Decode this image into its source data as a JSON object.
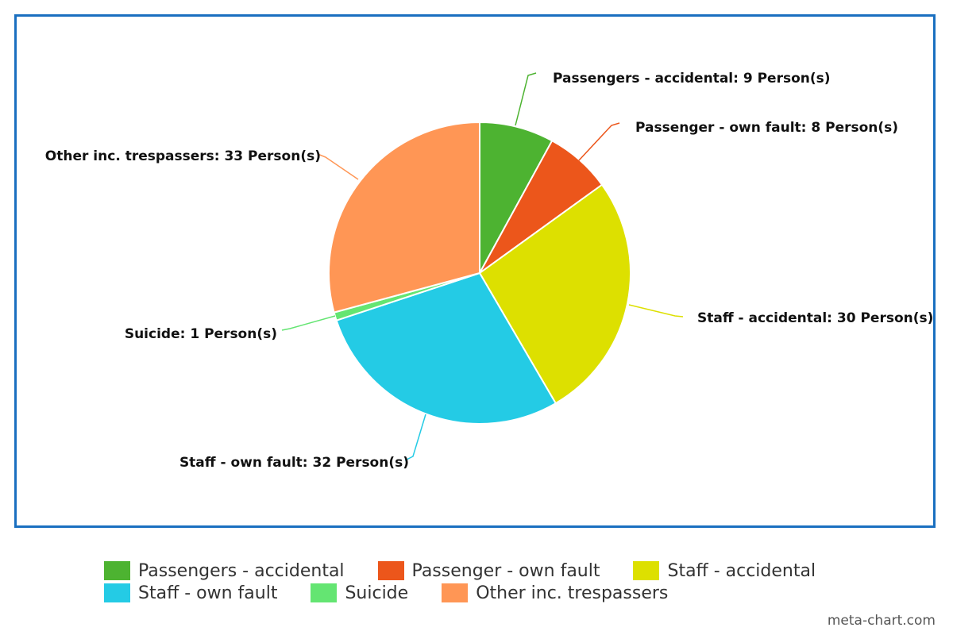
{
  "chart_data": {
    "type": "pie",
    "title": "",
    "unit": "Person(s)",
    "slices": [
      {
        "name": "Passengers - accidental",
        "value": 9,
        "label": "Passengers - accidental: 9 Person(s)",
        "color": "#4db331"
      },
      {
        "name": "Passenger - own fault",
        "value": 8,
        "label": "Passenger - own fault: 8 Person(s)",
        "color": "#ec561b"
      },
      {
        "name": "Staff - accidental",
        "value": 30,
        "label": "Staff - accidental: 30 Person(s)",
        "color": "#dde000"
      },
      {
        "name": "Staff - own fault",
        "value": 32,
        "label": "Staff - own fault: 32 Person(s)",
        "color": "#24cbe5"
      },
      {
        "name": "Suicide",
        "value": 1,
        "label": "Suicide: 1 Person(s)",
        "color": "#64e572"
      },
      {
        "name": "Other inc. trespassers",
        "value": 33,
        "label": "Other inc. trespassers: 33 Person(s)",
        "color": "#ff9655"
      }
    ],
    "legend": {
      "position": "bottom",
      "rows": [
        [
          "Passengers - accidental",
          "Passenger - own fault",
          "Staff - accidental"
        ],
        [
          "Staff - own fault",
          "Suicide",
          "Other inc. trespassers"
        ]
      ]
    },
    "frame_color": "#1a6fc0"
  },
  "credit": "meta-chart.com"
}
